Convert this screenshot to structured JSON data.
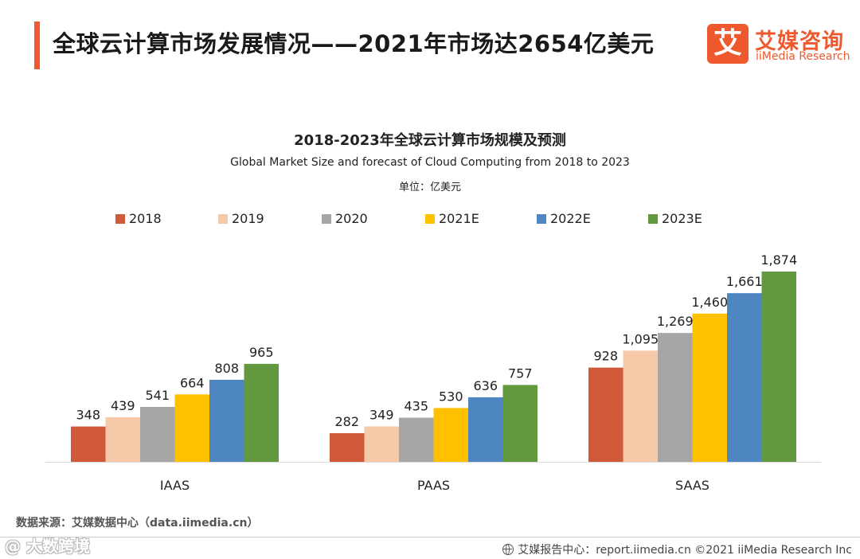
{
  "header": {
    "title": "全球云计算市场发展情况——2021年市场达2654亿美元"
  },
  "logo": {
    "mark": "艾",
    "name_cn": "艾媒咨询",
    "name_en": "iiMedia Research"
  },
  "chart_data": {
    "type": "bar",
    "title": "2018-2023年全球云计算市场规模及预测",
    "subtitle": "Global Market Size and forecast of Cloud Computing from 2018 to 2023",
    "unit": "单位：亿美元",
    "categories": [
      "IAAS",
      "PAAS",
      "SAAS"
    ],
    "series": [
      {
        "name": "2018",
        "color": "#d0593a",
        "values": [
          348,
          282,
          928
        ]
      },
      {
        "name": "2019",
        "color": "#f6c9a9",
        "values": [
          439,
          349,
          1095
        ]
      },
      {
        "name": "2020",
        "color": "#a6a6a6",
        "values": [
          541,
          435,
          1269
        ]
      },
      {
        "name": "2021E",
        "color": "#ffc000",
        "values": [
          664,
          530,
          1460
        ]
      },
      {
        "name": "2022E",
        "color": "#4e86c2",
        "values": [
          808,
          636,
          1661
        ]
      },
      {
        "name": "2023E",
        "color": "#62993e",
        "values": [
          965,
          757,
          1874
        ]
      }
    ],
    "value_labels": [
      [
        "348",
        "282",
        "928"
      ],
      [
        "439",
        "349",
        "1,095"
      ],
      [
        "541",
        "435",
        "1,269"
      ],
      [
        "664",
        "530",
        "1,460"
      ],
      [
        "808",
        "636",
        "1,661"
      ],
      [
        "965",
        "757",
        "1,874"
      ]
    ],
    "ylim": [
      0,
      1874
    ],
    "legend_position": "top",
    "grid": false
  },
  "source": {
    "text": "数据来源：艾媒数据中心（data.iimedia.cn）"
  },
  "watermark": {
    "text": "@ 大数跨境"
  },
  "footer": {
    "text": "艾媒报告中心：report.iimedia.cn  ©2021  iiMedia Research  Inc"
  }
}
